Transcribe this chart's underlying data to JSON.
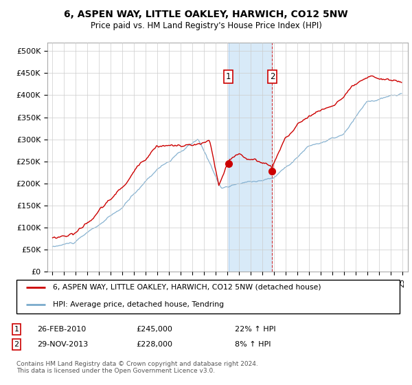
{
  "title": "6, ASPEN WAY, LITTLE OAKLEY, HARWICH, CO12 5NW",
  "subtitle": "Price paid vs. HM Land Registry's House Price Index (HPI)",
  "legend_line1": "6, ASPEN WAY, LITTLE OAKLEY, HARWICH, CO12 5NW (detached house)",
  "legend_line2": "HPI: Average price, detached house, Tendring",
  "footnote": "Contains HM Land Registry data © Crown copyright and database right 2024.\nThis data is licensed under the Open Government Licence v3.0.",
  "sale1_date": "26-FEB-2010",
  "sale1_price": 245000,
  "sale1_pct": "22% ↑ HPI",
  "sale2_date": "29-NOV-2013",
  "sale2_price": 228000,
  "sale2_pct": "8% ↑ HPI",
  "ylim": [
    0,
    520000
  ],
  "red_color": "#cc0000",
  "blue_color": "#7aaacc",
  "shade_color": "#d8eaf8",
  "background_color": "#ffffff",
  "grid_color": "#cccccc",
  "sale1_year": 2010,
  "sale1_month": 2,
  "sale2_year": 2013,
  "sale2_month": 11
}
